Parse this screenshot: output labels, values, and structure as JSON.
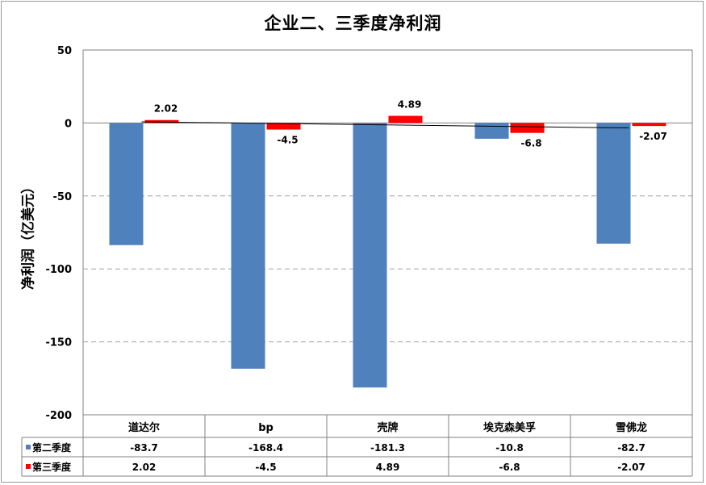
{
  "title": "企业二、三季度净利润",
  "colors": {
    "q2": "#4f81bd",
    "q3": "#ff0000",
    "grid": "#a0a0a0",
    "trend": "#000000"
  },
  "chart_data": {
    "type": "bar",
    "title": "企业二、三季度净利润",
    "ylabel": "净利润（亿美元）",
    "xlabel": "",
    "ylim": [
      -200,
      50
    ],
    "yticks": [
      50,
      0,
      -50,
      -100,
      -150,
      -200
    ],
    "ytick_labels": [
      "50",
      "0",
      "-50",
      "-100",
      "-150",
      "-200"
    ],
    "grid": "dashed horizontal",
    "legend": "data table",
    "categories": [
      "道达尔",
      "bp",
      "壳牌",
      "埃克森美孚",
      "雪佛龙"
    ],
    "series": [
      {
        "name": "第二季度",
        "values": [
          -83.7,
          -168.4,
          -181.3,
          -10.8,
          -82.7
        ],
        "value_labels": [
          "-83.7",
          "-168.4",
          "-181.3",
          "-10.8",
          "-82.7"
        ]
      },
      {
        "name": "第三季度",
        "values": [
          2.02,
          -4.5,
          4.89,
          -6.8,
          -2.07
        ],
        "value_labels": [
          "2.02",
          "-4.5",
          "4.89",
          "-6.8",
          "-2.07"
        ]
      }
    ],
    "trendline": {
      "series": "第三季度",
      "type": "linear"
    }
  }
}
